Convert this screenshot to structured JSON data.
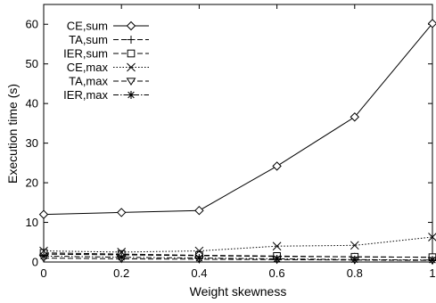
{
  "chart_data": {
    "type": "line",
    "xlabel": "Weight skewness",
    "ylabel": "Execution time (s)",
    "xlim": [
      0,
      1
    ],
    "ylim": [
      0,
      65
    ],
    "x_ticks": [
      "0",
      "0.2",
      "0.4",
      "0.6",
      "0.8",
      "1"
    ],
    "y_ticks": [
      "0",
      "10",
      "20",
      "30",
      "40",
      "50",
      "60"
    ],
    "x": [
      0,
      0.2,
      0.4,
      0.6,
      0.8,
      1.0
    ],
    "legend_position": "top-left",
    "grid": false,
    "series": [
      {
        "name": "CE,sum",
        "marker": "diamond",
        "dash": "solid",
        "values": [
          12.0,
          12.5,
          13.0,
          24.2,
          36.6,
          60.2
        ]
      },
      {
        "name": "TA,sum",
        "marker": "plus",
        "dash": "dashed",
        "values": [
          2.0,
          1.8,
          1.6,
          1.4,
          1.3,
          1.2
        ]
      },
      {
        "name": "IER,sum",
        "marker": "square",
        "dash": "dashed",
        "values": [
          2.3,
          2.0,
          1.7,
          1.5,
          1.3,
          1.2
        ]
      },
      {
        "name": "CE,max",
        "marker": "x",
        "dash": "dotted",
        "values": [
          2.8,
          2.5,
          2.8,
          4.0,
          4.2,
          6.3
        ]
      },
      {
        "name": "TA,max",
        "marker": "triangle-down",
        "dash": "dashed",
        "values": [
          1.0,
          0.8,
          0.7,
          0.6,
          0.5,
          0.4
        ]
      },
      {
        "name": "IER,max",
        "marker": "asterisk",
        "dash": "dashdot",
        "values": [
          1.5,
          1.2,
          1.0,
          0.8,
          0.6,
          0.5
        ]
      }
    ]
  }
}
